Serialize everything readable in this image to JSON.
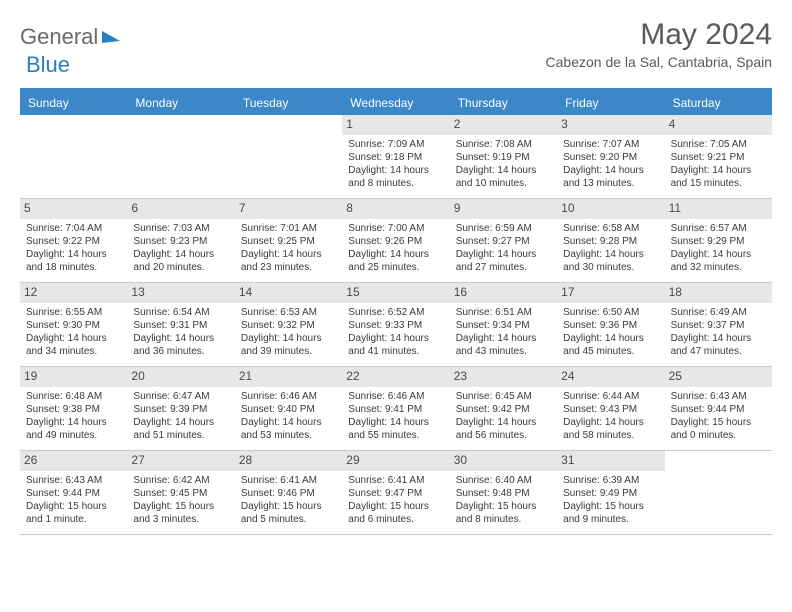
{
  "brand": {
    "word1": "General",
    "word2": "Blue"
  },
  "title": "May 2024",
  "location": "Cabezon de la Sal, Cantabria, Spain",
  "headers": [
    "Sunday",
    "Monday",
    "Tuesday",
    "Wednesday",
    "Thursday",
    "Friday",
    "Saturday"
  ],
  "labels": {
    "sunrise": "Sunrise:",
    "sunset": "Sunset:",
    "daylight": "Daylight:"
  },
  "colors": {
    "accent": "#3b87c8",
    "text": "#3b3b3b",
    "muted": "#6a6a6a",
    "daybg": "#e7e7e7",
    "border": "#c9c9c9"
  },
  "weeks": [
    [
      null,
      null,
      null,
      {
        "d": "1",
        "sr": "7:09 AM",
        "ss": "9:18 PM",
        "dl": "14 hours and 8 minutes."
      },
      {
        "d": "2",
        "sr": "7:08 AM",
        "ss": "9:19 PM",
        "dl": "14 hours and 10 minutes."
      },
      {
        "d": "3",
        "sr": "7:07 AM",
        "ss": "9:20 PM",
        "dl": "14 hours and 13 minutes."
      },
      {
        "d": "4",
        "sr": "7:05 AM",
        "ss": "9:21 PM",
        "dl": "14 hours and 15 minutes."
      }
    ],
    [
      {
        "d": "5",
        "sr": "7:04 AM",
        "ss": "9:22 PM",
        "dl": "14 hours and 18 minutes."
      },
      {
        "d": "6",
        "sr": "7:03 AM",
        "ss": "9:23 PM",
        "dl": "14 hours and 20 minutes."
      },
      {
        "d": "7",
        "sr": "7:01 AM",
        "ss": "9:25 PM",
        "dl": "14 hours and 23 minutes."
      },
      {
        "d": "8",
        "sr": "7:00 AM",
        "ss": "9:26 PM",
        "dl": "14 hours and 25 minutes."
      },
      {
        "d": "9",
        "sr": "6:59 AM",
        "ss": "9:27 PM",
        "dl": "14 hours and 27 minutes."
      },
      {
        "d": "10",
        "sr": "6:58 AM",
        "ss": "9:28 PM",
        "dl": "14 hours and 30 minutes."
      },
      {
        "d": "11",
        "sr": "6:57 AM",
        "ss": "9:29 PM",
        "dl": "14 hours and 32 minutes."
      }
    ],
    [
      {
        "d": "12",
        "sr": "6:55 AM",
        "ss": "9:30 PM",
        "dl": "14 hours and 34 minutes."
      },
      {
        "d": "13",
        "sr": "6:54 AM",
        "ss": "9:31 PM",
        "dl": "14 hours and 36 minutes."
      },
      {
        "d": "14",
        "sr": "6:53 AM",
        "ss": "9:32 PM",
        "dl": "14 hours and 39 minutes."
      },
      {
        "d": "15",
        "sr": "6:52 AM",
        "ss": "9:33 PM",
        "dl": "14 hours and 41 minutes."
      },
      {
        "d": "16",
        "sr": "6:51 AM",
        "ss": "9:34 PM",
        "dl": "14 hours and 43 minutes."
      },
      {
        "d": "17",
        "sr": "6:50 AM",
        "ss": "9:36 PM",
        "dl": "14 hours and 45 minutes."
      },
      {
        "d": "18",
        "sr": "6:49 AM",
        "ss": "9:37 PM",
        "dl": "14 hours and 47 minutes."
      }
    ],
    [
      {
        "d": "19",
        "sr": "6:48 AM",
        "ss": "9:38 PM",
        "dl": "14 hours and 49 minutes."
      },
      {
        "d": "20",
        "sr": "6:47 AM",
        "ss": "9:39 PM",
        "dl": "14 hours and 51 minutes."
      },
      {
        "d": "21",
        "sr": "6:46 AM",
        "ss": "9:40 PM",
        "dl": "14 hours and 53 minutes."
      },
      {
        "d": "22",
        "sr": "6:46 AM",
        "ss": "9:41 PM",
        "dl": "14 hours and 55 minutes."
      },
      {
        "d": "23",
        "sr": "6:45 AM",
        "ss": "9:42 PM",
        "dl": "14 hours and 56 minutes."
      },
      {
        "d": "24",
        "sr": "6:44 AM",
        "ss": "9:43 PM",
        "dl": "14 hours and 58 minutes."
      },
      {
        "d": "25",
        "sr": "6:43 AM",
        "ss": "9:44 PM",
        "dl": "15 hours and 0 minutes."
      }
    ],
    [
      {
        "d": "26",
        "sr": "6:43 AM",
        "ss": "9:44 PM",
        "dl": "15 hours and 1 minute."
      },
      {
        "d": "27",
        "sr": "6:42 AM",
        "ss": "9:45 PM",
        "dl": "15 hours and 3 minutes."
      },
      {
        "d": "28",
        "sr": "6:41 AM",
        "ss": "9:46 PM",
        "dl": "15 hours and 5 minutes."
      },
      {
        "d": "29",
        "sr": "6:41 AM",
        "ss": "9:47 PM",
        "dl": "15 hours and 6 minutes."
      },
      {
        "d": "30",
        "sr": "6:40 AM",
        "ss": "9:48 PM",
        "dl": "15 hours and 8 minutes."
      },
      {
        "d": "31",
        "sr": "6:39 AM",
        "ss": "9:49 PM",
        "dl": "15 hours and 9 minutes."
      },
      null
    ]
  ]
}
